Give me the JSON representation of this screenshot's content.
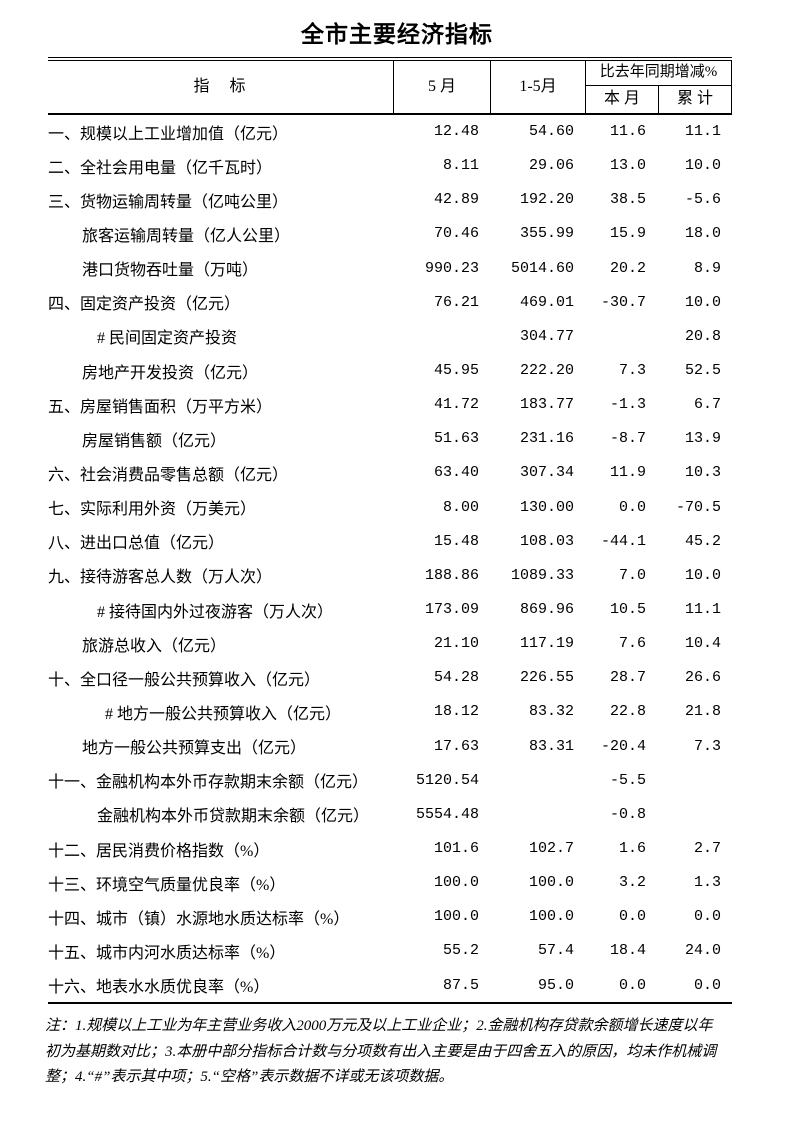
{
  "title": "全市主要经济指标",
  "table": {
    "header": {
      "indicator": "指　标",
      "may": "5 月",
      "jan_may": "1-5月",
      "yoy": "比去年同期增减%",
      "this_month": "本 月",
      "cumulative": "累 计"
    },
    "rows": [
      {
        "label": "一、规模以上工业增加值（亿元）",
        "indent": 0,
        "may": "12.48",
        "jan_may": "54.60",
        "month": "11.6",
        "cum": "11.1"
      },
      {
        "label": "二、全社会用电量（亿千瓦时）",
        "indent": 0,
        "may": "8.11",
        "jan_may": "29.06",
        "month": "13.0",
        "cum": "10.0"
      },
      {
        "label": "三、货物运输周转量（亿吨公里）",
        "indent": 0,
        "may": "42.89",
        "jan_may": "192.20",
        "month": "38.5",
        "cum": "-5.6"
      },
      {
        "label": "旅客运输周转量（亿人公里）",
        "indent": 1,
        "may": "70.46",
        "jan_may": "355.99",
        "month": "15.9",
        "cum": "18.0"
      },
      {
        "label": "港口货物吞吐量（万吨）",
        "indent": 1,
        "may": "990.23",
        "jan_may": "5014.60",
        "month": "20.2",
        "cum": "8.9"
      },
      {
        "label": "四、固定资产投资（亿元）",
        "indent": 0,
        "may": "76.21",
        "jan_may": "469.01",
        "month": "-30.7",
        "cum": "10.0"
      },
      {
        "label": "# 民间固定资产投资",
        "indent": 2,
        "may": "",
        "jan_may": "304.77",
        "month": "",
        "cum": "20.8"
      },
      {
        "label": "房地产开发投资（亿元）",
        "indent": 1,
        "may": "45.95",
        "jan_may": "222.20",
        "month": "7.3",
        "cum": "52.5"
      },
      {
        "label": "五、房屋销售面积（万平方米）",
        "indent": 0,
        "may": "41.72",
        "jan_may": "183.77",
        "month": "-1.3",
        "cum": "6.7"
      },
      {
        "label": "房屋销售额（亿元）",
        "indent": 1,
        "may": "51.63",
        "jan_may": "231.16",
        "month": "-8.7",
        "cum": "13.9"
      },
      {
        "label": "六、社会消费品零售总额（亿元）",
        "indent": 0,
        "may": "63.40",
        "jan_may": "307.34",
        "month": "11.9",
        "cum": "10.3"
      },
      {
        "label": "七、实际利用外资（万美元）",
        "indent": 0,
        "may": "8.00",
        "jan_may": "130.00",
        "month": "0.0",
        "cum": "-70.5"
      },
      {
        "label": "八、进出口总值（亿元）",
        "indent": 0,
        "may": "15.48",
        "jan_may": "108.03",
        "month": "-44.1",
        "cum": "45.2"
      },
      {
        "label": "九、接待游客总人数（万人次）",
        "indent": 0,
        "may": "188.86",
        "jan_may": "1089.33",
        "month": "7.0",
        "cum": "10.0"
      },
      {
        "label": "# 接待国内外过夜游客（万人次）",
        "indent": 2,
        "may": "173.09",
        "jan_may": "869.96",
        "month": "10.5",
        "cum": "11.1"
      },
      {
        "label": "旅游总收入（亿元）",
        "indent": 1,
        "may": "21.10",
        "jan_may": "117.19",
        "month": "7.6",
        "cum": "10.4"
      },
      {
        "label": "十、全口径一般公共预算收入（亿元）",
        "indent": 0,
        "may": "54.28",
        "jan_may": "226.55",
        "month": "28.7",
        "cum": "26.6"
      },
      {
        "label": "# 地方一般公共预算收入（亿元）",
        "indent": 3,
        "may": "18.12",
        "jan_may": "83.32",
        "month": "22.8",
        "cum": "21.8"
      },
      {
        "label": "地方一般公共预算支出（亿元）",
        "indent": 1,
        "may": "17.63",
        "jan_may": "83.31",
        "month": "-20.4",
        "cum": "7.3"
      },
      {
        "label": "十一、金融机构本外币存款期末余额（亿元）",
        "indent": 0,
        "may": "5120.54",
        "jan_may": "",
        "month": "-5.5",
        "cum": ""
      },
      {
        "label": "金融机构本外币贷款期末余额（亿元）",
        "indent": 2,
        "may": "5554.48",
        "jan_may": "",
        "month": "-0.8",
        "cum": ""
      },
      {
        "label": "十二、居民消费价格指数（%）",
        "indent": 0,
        "may": "101.6",
        "jan_may": "102.7",
        "month": "1.6",
        "cum": "2.7"
      },
      {
        "label": "十三、环境空气质量优良率（%）",
        "indent": 0,
        "may": "100.0",
        "jan_may": "100.0",
        "month": "3.2",
        "cum": "1.3"
      },
      {
        "label": "十四、城市（镇）水源地水质达标率（%）",
        "indent": 0,
        "may": "100.0",
        "jan_may": "100.0",
        "month": "0.0",
        "cum": "0.0"
      },
      {
        "label": "十五、城市内河水质达标率（%）",
        "indent": 0,
        "may": "55.2",
        "jan_may": "57.4",
        "month": "18.4",
        "cum": "24.0"
      },
      {
        "label": "十六、地表水水质优良率（%）",
        "indent": 0,
        "may": "87.5",
        "jan_may": "95.0",
        "month": "0.0",
        "cum": "0.0"
      }
    ]
  },
  "footnote": {
    "lines": [
      "注：1.规模以上工业为年主营业务收入2000万元及以上工业企业；2.金融机构存贷款余额增长速度以年",
      "初为基期数对比；3.本册中部分指标合计数与分项数有出入主要是由于四舍五入的原因，均未作机械调",
      "整；4.“#”表示其中项；5.“空格”表示数据不详或无该项数据。"
    ]
  }
}
